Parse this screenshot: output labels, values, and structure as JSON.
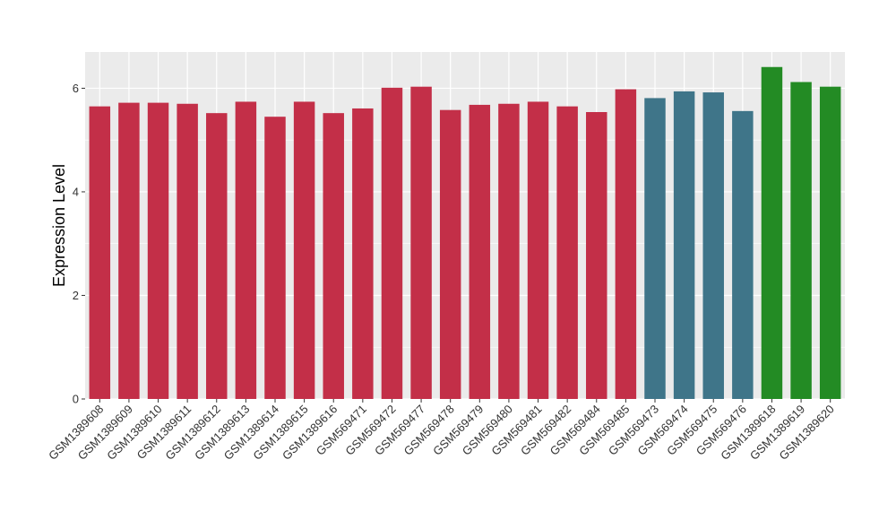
{
  "chart_data": {
    "type": "bar",
    "title": "",
    "xlabel": "",
    "ylabel": "Expression Level",
    "ylim": [
      0,
      6.7
    ],
    "yticks": [
      0,
      2,
      4,
      6
    ],
    "grid": true,
    "background_color": "#EBEBEB",
    "grid_color": "#FFFFFF",
    "categories": [
      "GSM1389608",
      "GSM1389609",
      "GSM1389610",
      "GSM1389611",
      "GSM1389612",
      "GSM1389613",
      "GSM1389614",
      "GSM1389615",
      "GSM1389616",
      "GSM569471",
      "GSM569472",
      "GSM569477",
      "GSM569478",
      "GSM569479",
      "GSM569480",
      "GSM569481",
      "GSM569482",
      "GSM569484",
      "GSM569485",
      "GSM569473",
      "GSM569474",
      "GSM569475",
      "GSM569476",
      "GSM1389618",
      "GSM1389619",
      "GSM1389620"
    ],
    "values": [
      5.65,
      5.72,
      5.72,
      5.7,
      5.52,
      5.74,
      5.45,
      5.74,
      5.52,
      5.61,
      6.01,
      6.03,
      5.58,
      5.68,
      5.7,
      5.74,
      5.65,
      5.54,
      5.98,
      5.81,
      5.94,
      5.92,
      5.56,
      6.41,
      6.12,
      6.03
    ],
    "groups": [
      0,
      0,
      0,
      0,
      0,
      0,
      0,
      0,
      0,
      0,
      0,
      0,
      0,
      0,
      0,
      0,
      0,
      0,
      0,
      1,
      1,
      1,
      1,
      2,
      2,
      2
    ],
    "group_colors": [
      "#C32F48",
      "#3F7589",
      "#238B24"
    ]
  }
}
